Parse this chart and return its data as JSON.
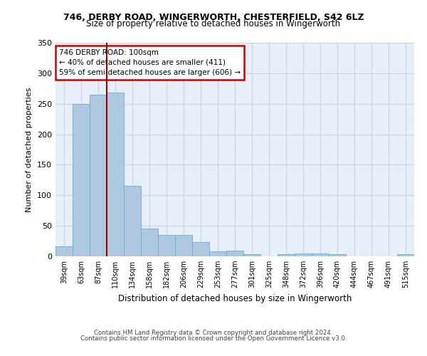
{
  "title1": "746, DERBY ROAD, WINGERWORTH, CHESTERFIELD, S42 6LZ",
  "title2": "Size of property relative to detached houses in Wingerworth",
  "xlabel": "Distribution of detached houses by size in Wingerworth",
  "ylabel": "Number of detached properties",
  "footer1": "Contains HM Land Registry data © Crown copyright and database right 2024.",
  "footer2": "Contains public sector information licensed under the Open Government Licence v3.0.",
  "annotation_line1": "746 DERBY ROAD: 100sqm",
  "annotation_line2": "← 40% of detached houses are smaller (411)",
  "annotation_line3": "59% of semi-detached houses are larger (606) →",
  "categories": [
    "39sqm",
    "63sqm",
    "87sqm",
    "110sqm",
    "134sqm",
    "158sqm",
    "182sqm",
    "206sqm",
    "229sqm",
    "253sqm",
    "277sqm",
    "301sqm",
    "325sqm",
    "348sqm",
    "372sqm",
    "396sqm",
    "420sqm",
    "444sqm",
    "467sqm",
    "491sqm",
    "515sqm"
  ],
  "values": [
    16,
    250,
    265,
    268,
    116,
    45,
    35,
    35,
    23,
    8,
    9,
    3,
    0,
    4,
    5,
    5,
    3,
    0,
    0,
    0,
    3
  ],
  "bar_color": "#aec8e0",
  "bar_edgecolor": "#6aaed6",
  "grid_color": "#c8d4e8",
  "background_color": "#e8eef8",
  "vline_color": "#990000",
  "vline_x_index": 2.5,
  "annotation_box_color": "#cc0000",
  "ylim": [
    0,
    350
  ],
  "yticks": [
    0,
    50,
    100,
    150,
    200,
    250,
    300,
    350
  ]
}
